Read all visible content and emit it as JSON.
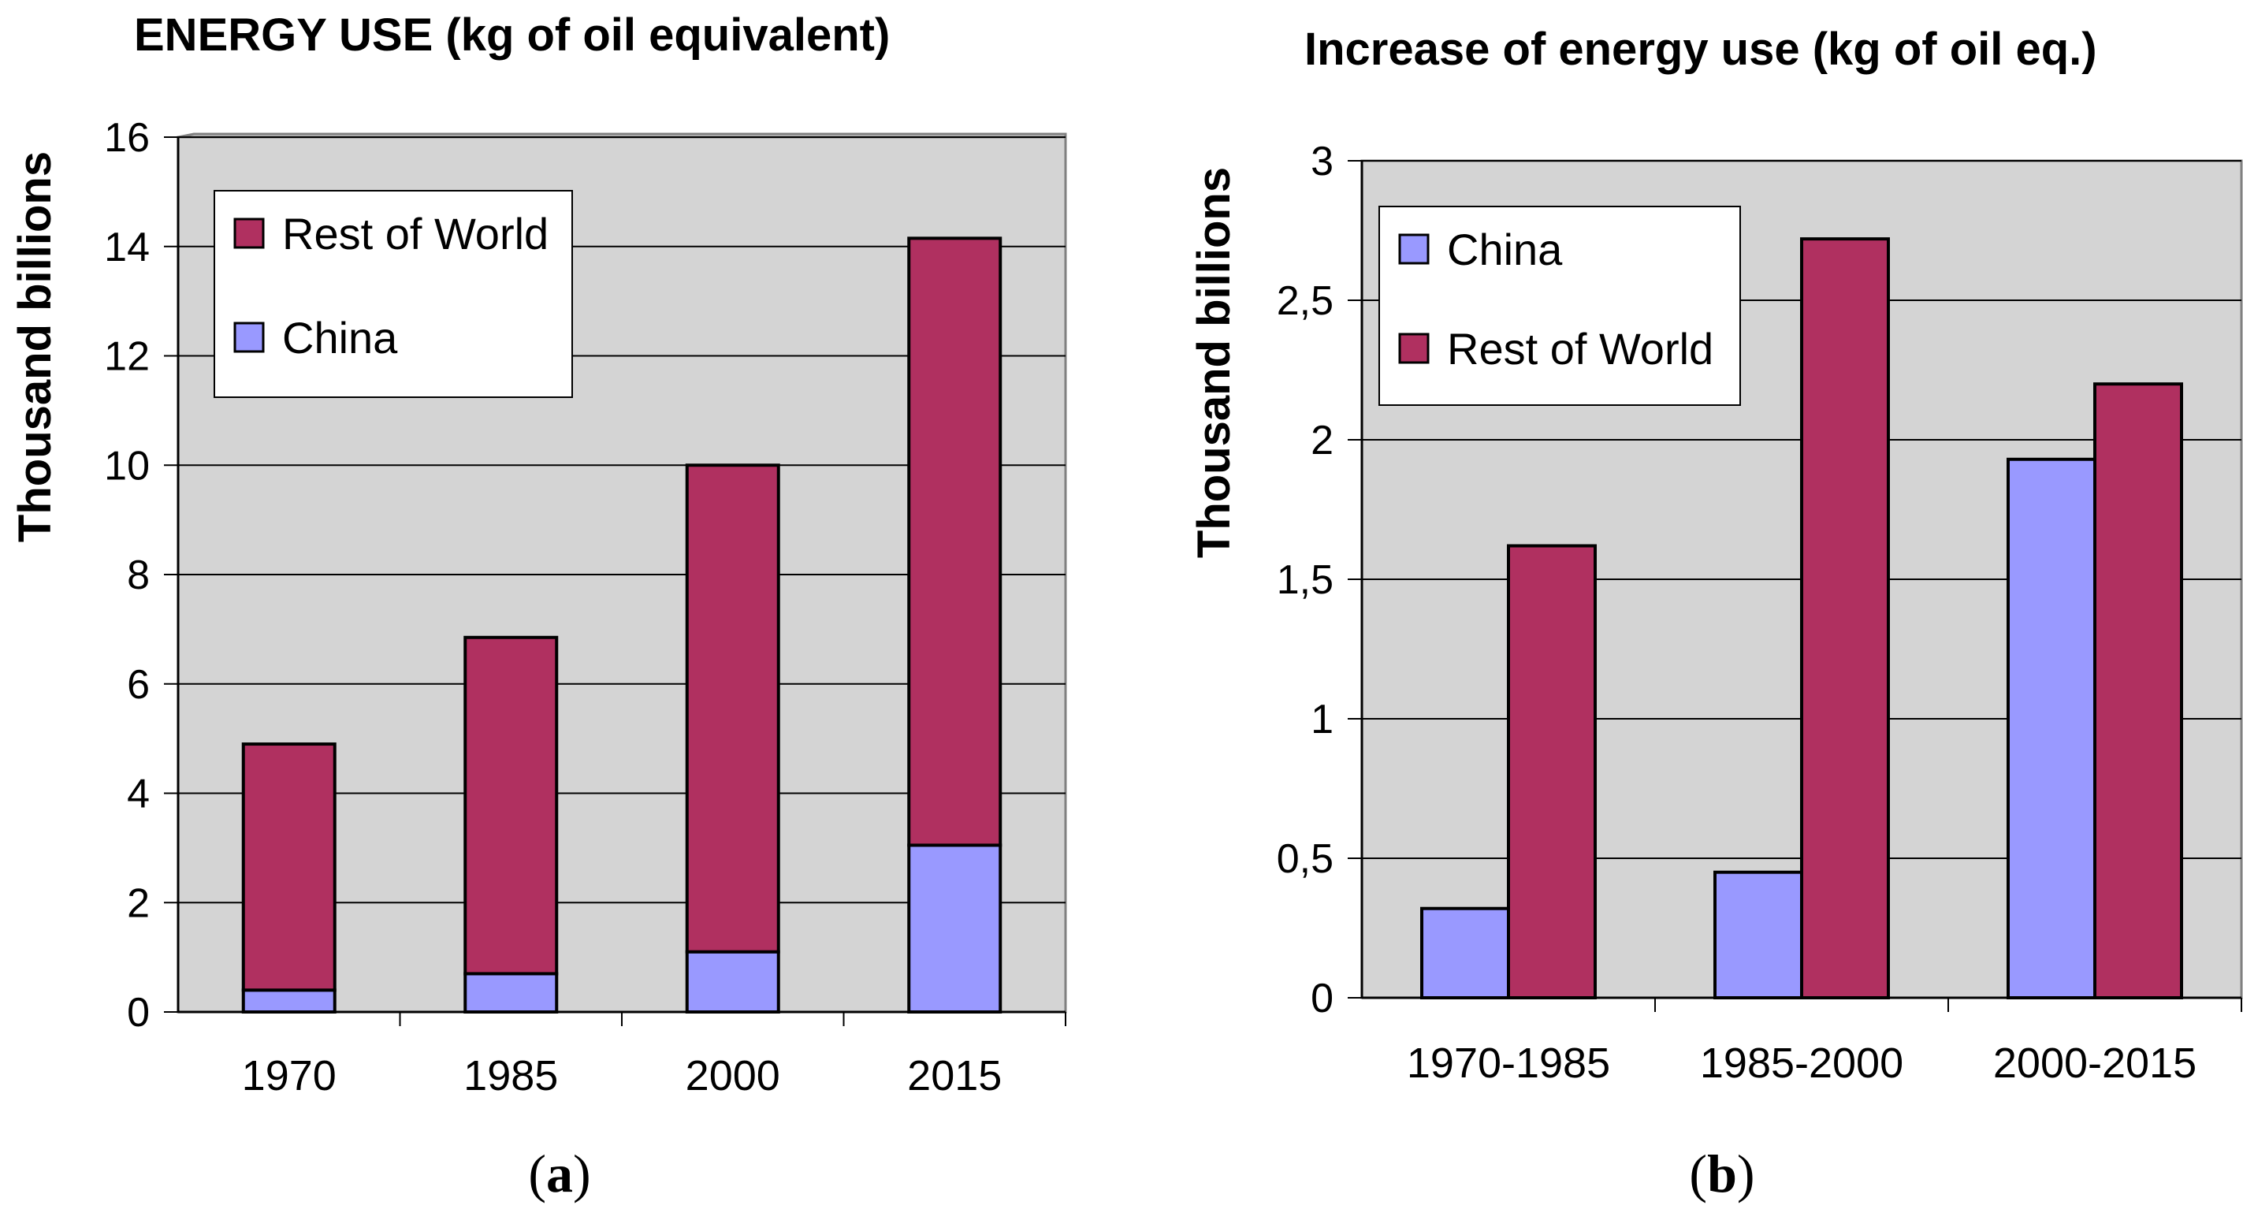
{
  "colors": {
    "china": "#9999ff",
    "rest_of_world": "#b03060",
    "plot_bg": "#d4d4d4",
    "grid": "#000000",
    "bar_outline": "#000000"
  },
  "chart_data": [
    {
      "id": "a",
      "type": "bar",
      "stacked": true,
      "title": "ENERGY USE (kg of oil equivalent)",
      "xlabel": "",
      "ylabel": "Thousand billions",
      "categories": [
        "1970",
        "1985",
        "2000",
        "2015"
      ],
      "series": [
        {
          "name": "China",
          "values": [
            0.4,
            0.7,
            1.1,
            3.05
          ]
        },
        {
          "name": "Rest of World",
          "values": [
            4.5,
            6.15,
            8.9,
            11.1
          ]
        }
      ],
      "ylim": [
        0,
        16
      ],
      "yticks": [
        0,
        2,
        4,
        6,
        8,
        10,
        12,
        14,
        16
      ],
      "ytick_labels": [
        "0",
        "2",
        "4",
        "6",
        "8",
        "10",
        "12",
        "14",
        "16"
      ],
      "legend_order": [
        "Rest of World",
        "China"
      ],
      "legend_position": "top-left",
      "grid": true,
      "panel_label": {
        "open": "(",
        "letter": "a",
        "close": ")"
      }
    },
    {
      "id": "b",
      "type": "bar",
      "stacked": false,
      "title": "Increase of energy use (kg of oil eq.)",
      "xlabel": "",
      "ylabel": "Thousand billions",
      "categories": [
        "1970-1985",
        "1985-2000",
        "2000-2015"
      ],
      "series": [
        {
          "name": "China",
          "values": [
            0.32,
            0.45,
            1.93
          ]
        },
        {
          "name": "Rest of World",
          "values": [
            1.62,
            2.72,
            2.2
          ]
        }
      ],
      "ylim": [
        0,
        3
      ],
      "yticks": [
        0,
        0.5,
        1,
        1.5,
        2,
        2.5,
        3
      ],
      "ytick_labels": [
        "0",
        "0,5",
        "1",
        "1,5",
        "2",
        "2,5",
        "3"
      ],
      "legend_order": [
        "China",
        "Rest of World"
      ],
      "legend_position": "top-left",
      "grid": true,
      "panel_label": {
        "open": "(",
        "letter": "b",
        "close": ")"
      }
    }
  ]
}
